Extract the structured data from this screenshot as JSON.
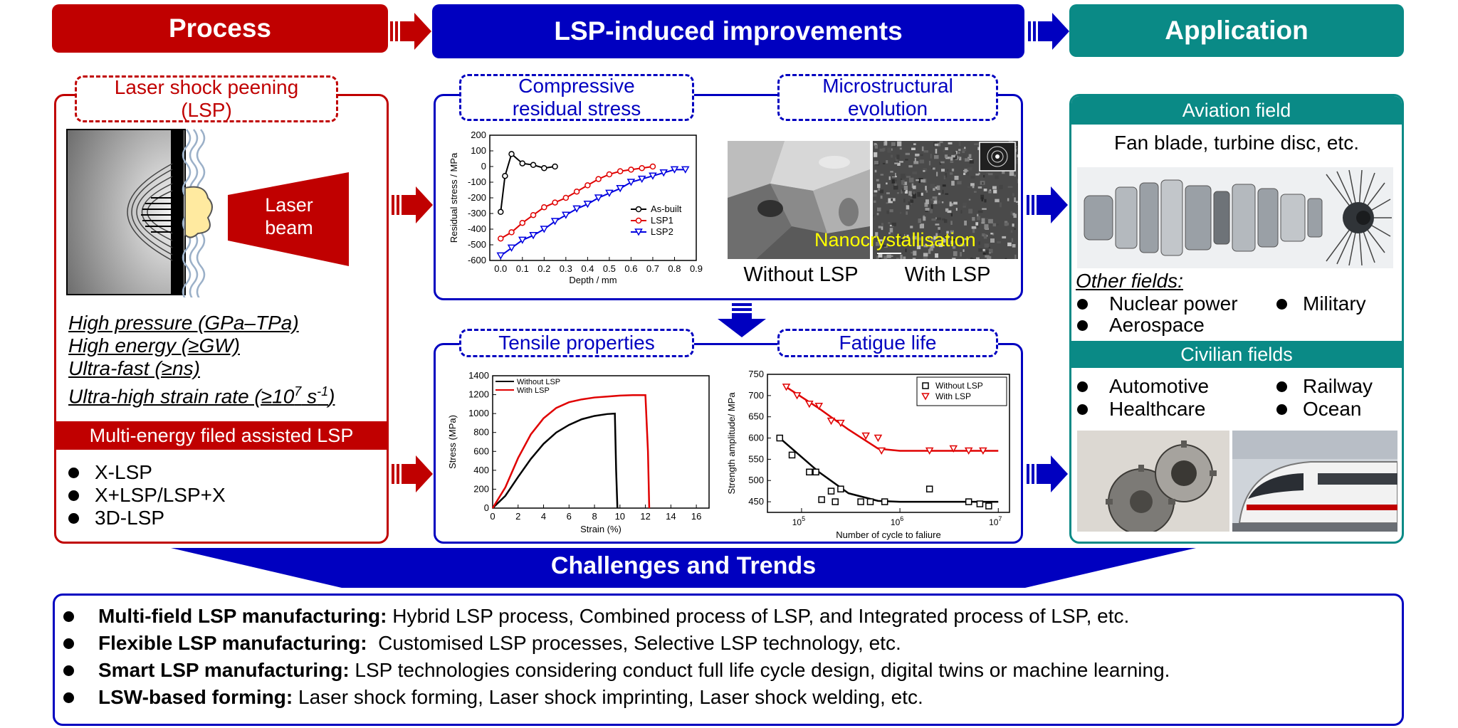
{
  "headers": {
    "process": "Process",
    "improvements": "LSP-induced improvements",
    "application": "Application"
  },
  "process": {
    "lsp_title": "Laser shock peening (LSP)",
    "laser_label": "Laser beam",
    "features": [
      "High pressure (GPa–TPa)",
      "High energy (≥GW)",
      "Ultra-fast (≥ns)",
      "Ultra-high strain rate (≥10",
      "7",
      " s",
      "-1",
      ")"
    ],
    "multi_energy_title": "Multi-energy filed assisted LSP",
    "multi_energy_items": [
      "X-LSP",
      "X+LSP/LSP+X",
      "3D-LSP"
    ]
  },
  "improvements": {
    "compressive_title": "Compressive residual stress",
    "micro_title": "Microstructural evolution",
    "tensile_title": "Tensile properties",
    "fatigue_title": "Fatigue life",
    "micro_overlay": "Nanocrystallisation",
    "micro_caption_left": "Without LSP",
    "micro_caption_right": "With LSP"
  },
  "application": {
    "aviation_title": "Aviation field",
    "aviation_desc": "Fan blade, turbine disc, etc.",
    "other_title": "Other fields:",
    "other_items": [
      "Nuclear power",
      "Military",
      "Aerospace"
    ],
    "civilian_title": "Civilian fields",
    "civilian_items": [
      "Automotive",
      "Railway",
      "Healthcare",
      "Ocean"
    ]
  },
  "challenges": {
    "title": "Challenges and Trends",
    "items": [
      {
        "bold": "Multi-field LSP manufacturing:",
        "text": " Hybrid LSP process, Combined process of LSP, and Integrated process of LSP, etc."
      },
      {
        "bold": "Flexible LSP manufacturing:",
        "text": "  Customised LSP processes, Selective LSP technology, etc."
      },
      {
        "bold": "Smart LSP manufacturing:",
        "text": " LSP technologies considering conduct full life cycle design, digital twins or machine learning."
      },
      {
        "bold": "LSW-based forming:",
        "text": " Laser shock forming, Laser shock imprinting, Laser shock welding, etc."
      }
    ]
  },
  "colors": {
    "red": "#c00000",
    "blue": "#0000c0",
    "teal": "#0a8a86"
  },
  "chart_data": [
    {
      "type": "line",
      "xlabel": "Depth / mm",
      "ylabel": "Residual stress / MPa",
      "xlim": [
        -0.05,
        0.9
      ],
      "ylim": [
        -600,
        200
      ],
      "xticks": [
        "0.0",
        "0.1",
        "0.2",
        "0.3",
        "0.4",
        "0.5",
        "0.6",
        "0.7",
        "0.8",
        "0.9"
      ],
      "yticks": [
        "200",
        "100",
        "0",
        "-100",
        "-200",
        "-300",
        "-400",
        "-500",
        "-600"
      ],
      "legend_position": "bottom-right",
      "series": [
        {
          "name": "As-built",
          "color": "#000000",
          "marker": "circle",
          "x": [
            0.0,
            0.02,
            0.05,
            0.1,
            0.15,
            0.2,
            0.25
          ],
          "y": [
            -290,
            -60,
            80,
            20,
            10,
            -10,
            0
          ]
        },
        {
          "name": "LSP1",
          "color": "#e00000",
          "marker": "circle",
          "x": [
            0.0,
            0.05,
            0.1,
            0.15,
            0.2,
            0.25,
            0.3,
            0.35,
            0.4,
            0.45,
            0.5,
            0.55,
            0.6,
            0.65,
            0.7
          ],
          "y": [
            -460,
            -420,
            -360,
            -310,
            -260,
            -230,
            -200,
            -160,
            -120,
            -80,
            -50,
            -30,
            -20,
            -10,
            0
          ]
        },
        {
          "name": "LSP2",
          "color": "#0000e0",
          "marker": "triangle",
          "x": [
            0.0,
            0.05,
            0.1,
            0.15,
            0.2,
            0.25,
            0.3,
            0.35,
            0.4,
            0.45,
            0.5,
            0.55,
            0.6,
            0.65,
            0.7,
            0.75,
            0.8,
            0.85
          ],
          "y": [
            -570,
            -520,
            -470,
            -440,
            -400,
            -350,
            -310,
            -270,
            -240,
            -200,
            -170,
            -140,
            -100,
            -80,
            -60,
            -40,
            -20,
            -20
          ]
        }
      ]
    },
    {
      "type": "line",
      "xlabel": "Strain (%)",
      "ylabel": "Stress (MPa)",
      "xlim": [
        0,
        17
      ],
      "ylim": [
        0,
        1400
      ],
      "xticks": [
        "0",
        "2",
        "4",
        "6",
        "8",
        "10",
        "12",
        "14",
        "16"
      ],
      "yticks": [
        "0",
        "200",
        "400",
        "600",
        "800",
        "1000",
        "1200",
        "1400"
      ],
      "legend_position": "top-left",
      "series": [
        {
          "name": "Without LSP",
          "color": "#000000",
          "x": [
            0,
            1,
            2,
            3,
            4,
            5,
            6,
            7,
            8,
            9,
            9.6,
            9.7,
            9.8
          ],
          "y": [
            0,
            130,
            330,
            520,
            680,
            800,
            880,
            940,
            975,
            995,
            1000,
            400,
            0
          ]
        },
        {
          "name": "With LSP",
          "color": "#e00000",
          "x": [
            0,
            1,
            2,
            3,
            4,
            5,
            6,
            7,
            8,
            9,
            10,
            11,
            12,
            12.2,
            12.3
          ],
          "y": [
            0,
            220,
            530,
            780,
            950,
            1060,
            1120,
            1150,
            1170,
            1180,
            1190,
            1195,
            1195,
            600,
            0
          ]
        }
      ]
    },
    {
      "type": "scatter",
      "xlabel": "Number of cycle to faliure",
      "ylabel": "Strength amplitude/ MPa",
      "xscale": "log",
      "ylim": [
        425,
        750
      ],
      "xticks": [
        "10^5",
        "10^6",
        "10^7"
      ],
      "yticks": [
        "450",
        "500",
        "550",
        "600",
        "650",
        "700",
        "750"
      ],
      "legend_position": "top-right",
      "series": [
        {
          "name": "Without LSP",
          "color": "#000000",
          "marker": "square",
          "x": [
            60000,
            80000,
            120000,
            140000,
            160000,
            200000,
            220000,
            250000,
            400000,
            500000,
            700000,
            2000000,
            5000000,
            6500000,
            8000000
          ],
          "y": [
            600,
            560,
            520,
            520,
            455,
            475,
            450,
            480,
            450,
            450,
            450,
            480,
            450,
            445,
            440
          ],
          "fit_x": [
            60000,
            150000,
            300000,
            600000,
            1000000,
            3000000,
            10000000
          ],
          "fit_y": [
            600,
            520,
            470,
            452,
            450,
            450,
            450
          ]
        },
        {
          "name": "With LSP",
          "color": "#e00000",
          "marker": "triangle",
          "x": [
            70000,
            90000,
            120000,
            150000,
            200000,
            250000,
            450000,
            600000,
            650000,
            2000000,
            3500000,
            5000000,
            7000000
          ],
          "y": [
            720,
            700,
            680,
            675,
            640,
            635,
            605,
            600,
            570,
            570,
            575,
            570,
            570
          ],
          "fit_x": [
            70000,
            150000,
            300000,
            600000,
            1000000,
            3000000,
            10000000
          ],
          "fit_y": [
            720,
            670,
            620,
            575,
            570,
            570,
            570
          ]
        }
      ]
    }
  ]
}
